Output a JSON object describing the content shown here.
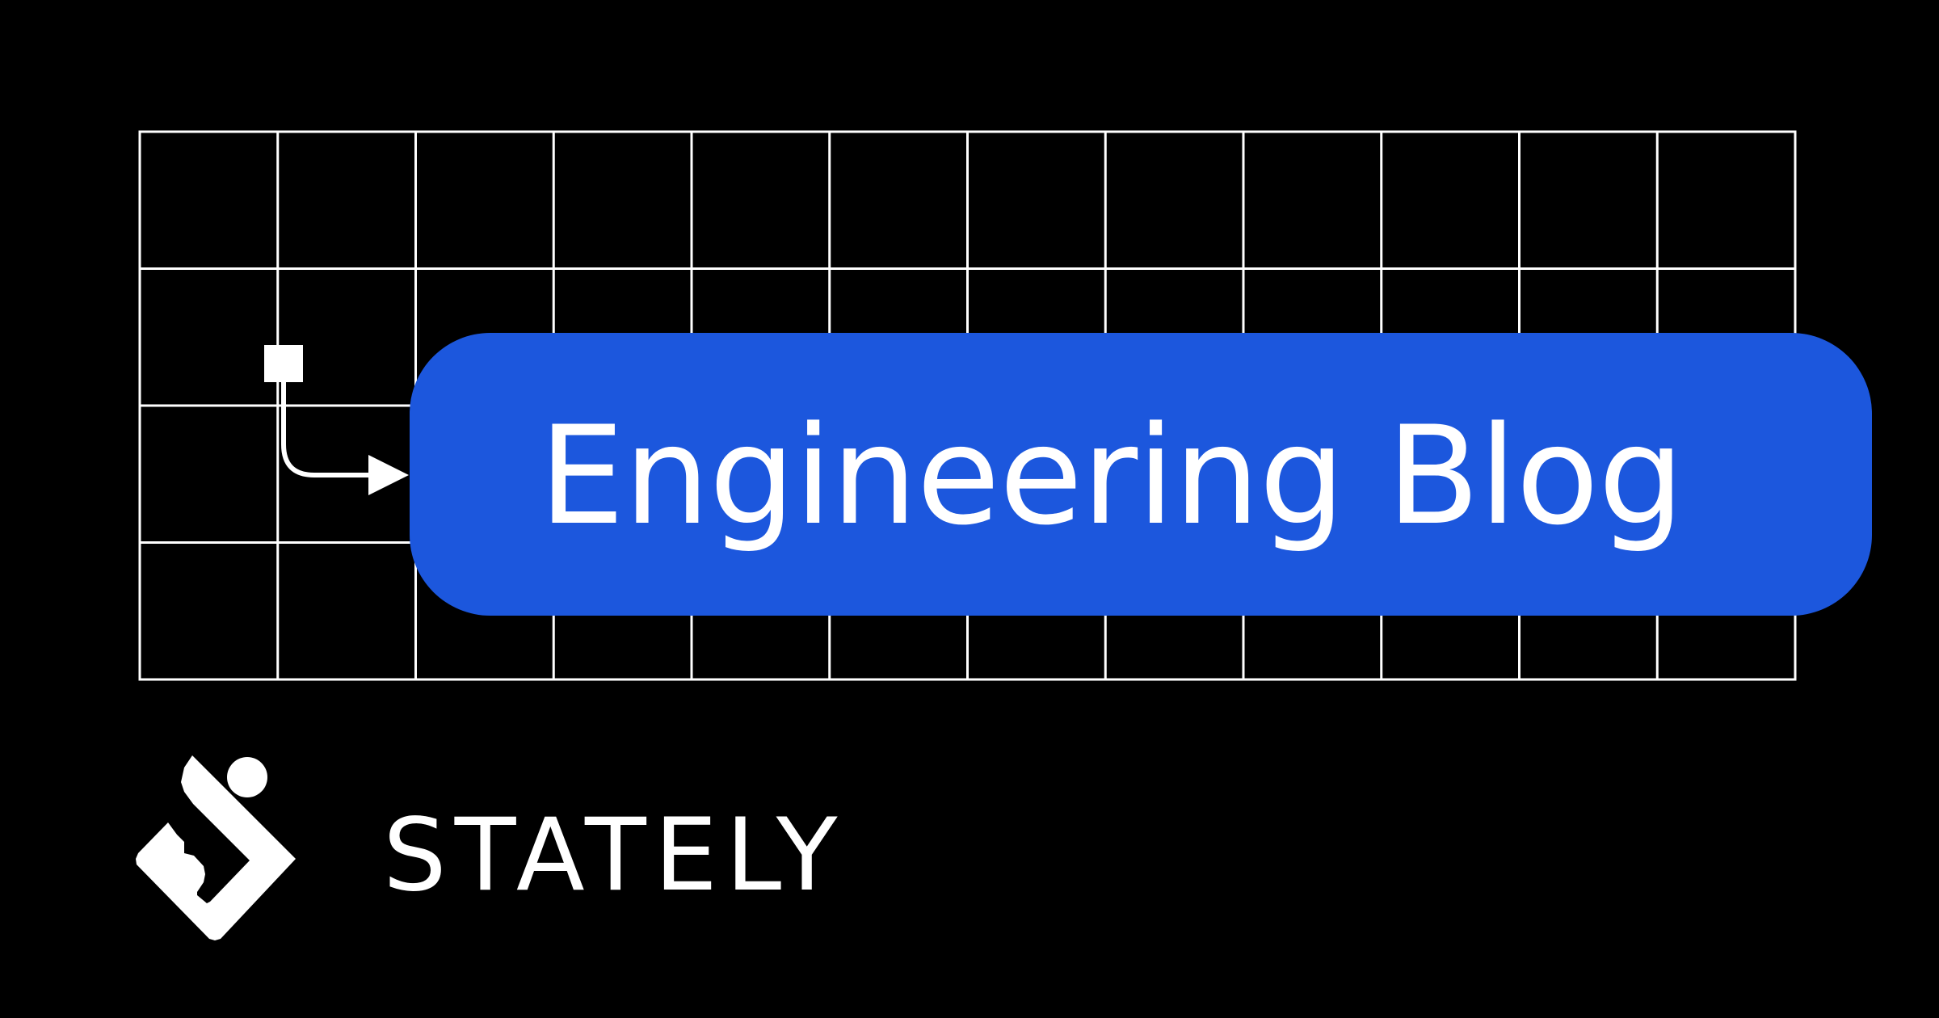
{
  "title": "Engineering Blog",
  "brand": {
    "name": "STATELY",
    "logo_icon": "stately-logo-icon"
  },
  "icons": {
    "connector": "state-transition-arrow-icon"
  },
  "colors": {
    "background": "#000000",
    "card": "#1c57dd",
    "foreground": "#ffffff",
    "grid_line": "#ffffff"
  },
  "grid": {
    "columns": 12,
    "rows": 4
  }
}
